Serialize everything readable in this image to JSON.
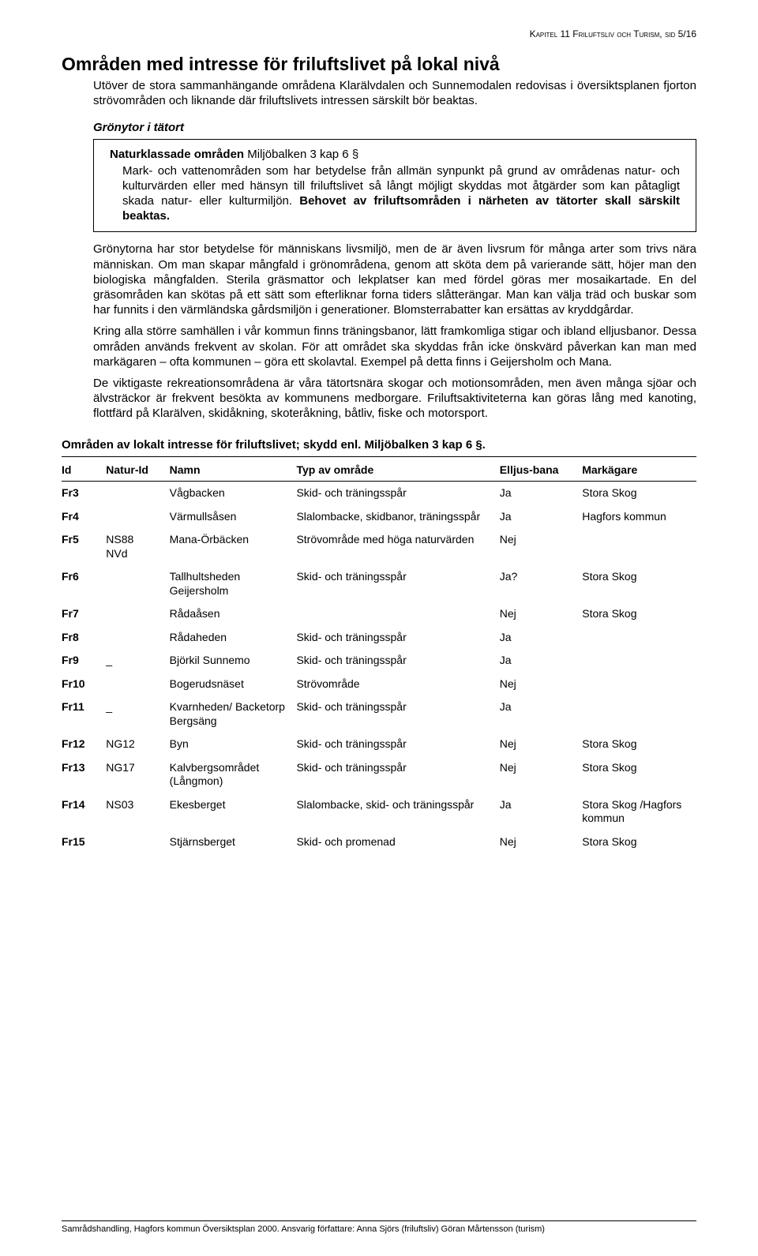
{
  "header": "Kapitel 11 Friluftsliv och Turism, sid 5/16",
  "h1": "Områden med intresse för friluftslivet på lokal nivå",
  "intro": "Utöver de stora sammanhängande områdena Klarälvdalen och Sunnemodalen redovisas i översiktsplanen fjorton strövområden och liknande där friluftslivets intressen särskilt bör beaktas.",
  "sub1": "Grönytor i tätort",
  "lawbox": {
    "title_bold": "Naturklassade områden",
    "title_rest": " Miljöbalken 3 kap 6 §",
    "body_pre": "Mark- och vattenområden som har betydelse från allmän synpunkt på grund av områdenas natur- och kulturvärden eller med hänsyn till friluftslivet så långt möjligt skyddas mot åtgärder som kan påtagligt skada natur- eller kulturmiljön. ",
    "body_bold": "Behovet av friluftsområden i närheten av tätorter skall särskilt beaktas."
  },
  "p1": "Grönytorna har stor betydelse för människans livsmiljö, men de är även livsrum för många arter som trivs nära människan. Om man skapar mångfald i grönområdena, genom att sköta dem på varierande sätt, höjer man den biologiska mångfalden. Sterila gräsmattor och lekplatser kan med fördel göras mer mosaikartade. En del gräsområden kan skötas på ett sätt som efterliknar forna tiders slåtterängar. Man kan välja träd och buskar som har funnits i den värmländska gårdsmiljön i generationer. Blomsterrabatter kan ersättas av kryddgårdar.",
  "p2": "Kring alla större samhällen i vår kommun finns träningsbanor, lätt framkomliga stigar och ibland elljusbanor. Dessa områden används frekvent av skolan. För att området ska skyddas från icke önskvärd påverkan kan man med markägaren – ofta kommunen – göra ett skolavtal. Exempel på detta finns i Geijersholm och Mana.",
  "p3": "De viktigaste rekreationsområdena är våra tätortsnära skogar och motionsområden, men även många sjöar och älvsträckor är frekvent besökta av kommunens medborgare. Friluftsaktiviteterna kan göras lång med kanoting, flottfärd på Klarälven, skidåkning, skoteråkning, båtliv, fiske och motorsport.",
  "table": {
    "title": "Områden av lokalt intresse för friluftslivet; skydd enl. Miljöbalken 3 kap 6 §.",
    "columns": [
      "Id",
      "Natur-Id",
      "Namn",
      "Typ av område",
      "Elljus-bana",
      "Markägare"
    ],
    "rows": [
      [
        "Fr3",
        "",
        "Vågbacken",
        "Skid- och träningsspår",
        "Ja",
        "Stora Skog"
      ],
      [
        "Fr4",
        "",
        "Värmullsåsen",
        "Slalombacke, skidbanor, träningsspår",
        "Ja",
        "Hagfors kommun"
      ],
      [
        "Fr5",
        "NS88\nNVd",
        "Mana-Örbäcken",
        "Strövområde med höga naturvärden",
        "Nej",
        ""
      ],
      [
        "Fr6",
        "",
        "Tallhultsheden Geijersholm",
        "Skid- och träningsspår",
        "Ja?",
        "Stora Skog"
      ],
      [
        "Fr7",
        "",
        "Rådaåsen",
        "",
        "Nej",
        "Stora Skog"
      ],
      [
        "Fr8",
        "",
        "Rådaheden",
        "Skid- och träningsspår",
        "Ja",
        ""
      ],
      [
        "Fr9",
        "_",
        "Björkil Sunnemo",
        "Skid- och träningsspår",
        "Ja",
        ""
      ],
      [
        "Fr10",
        "",
        "Bogerudsnäset",
        "Strövområde",
        "Nej",
        ""
      ],
      [
        "Fr11",
        "_",
        "Kvarnheden/ Backetorp Bergsäng",
        "Skid- och träningsspår",
        "Ja",
        ""
      ],
      [
        "Fr12",
        "NG12",
        "Byn",
        "Skid- och träningsspår",
        "Nej",
        "Stora Skog"
      ],
      [
        "Fr13",
        "NG17",
        "Kalvbergsområdet (Långmon)",
        "Skid- och träningsspår",
        "Nej",
        "Stora Skog"
      ],
      [
        "Fr14",
        "NS03",
        "Ekesberget",
        "Slalombacke, skid- och träningsspår",
        "Ja",
        "Stora Skog /Hagfors kommun"
      ],
      [
        "Fr15",
        "",
        "Stjärnsberget",
        "Skid- och promenad",
        "Nej",
        "Stora Skog"
      ]
    ]
  },
  "footer": "Samrådshandling, Hagfors kommun Översiktsplan 2000. Ansvarig författare: Anna Sjörs (friluftsliv) Göran Mårtensson (turism)"
}
